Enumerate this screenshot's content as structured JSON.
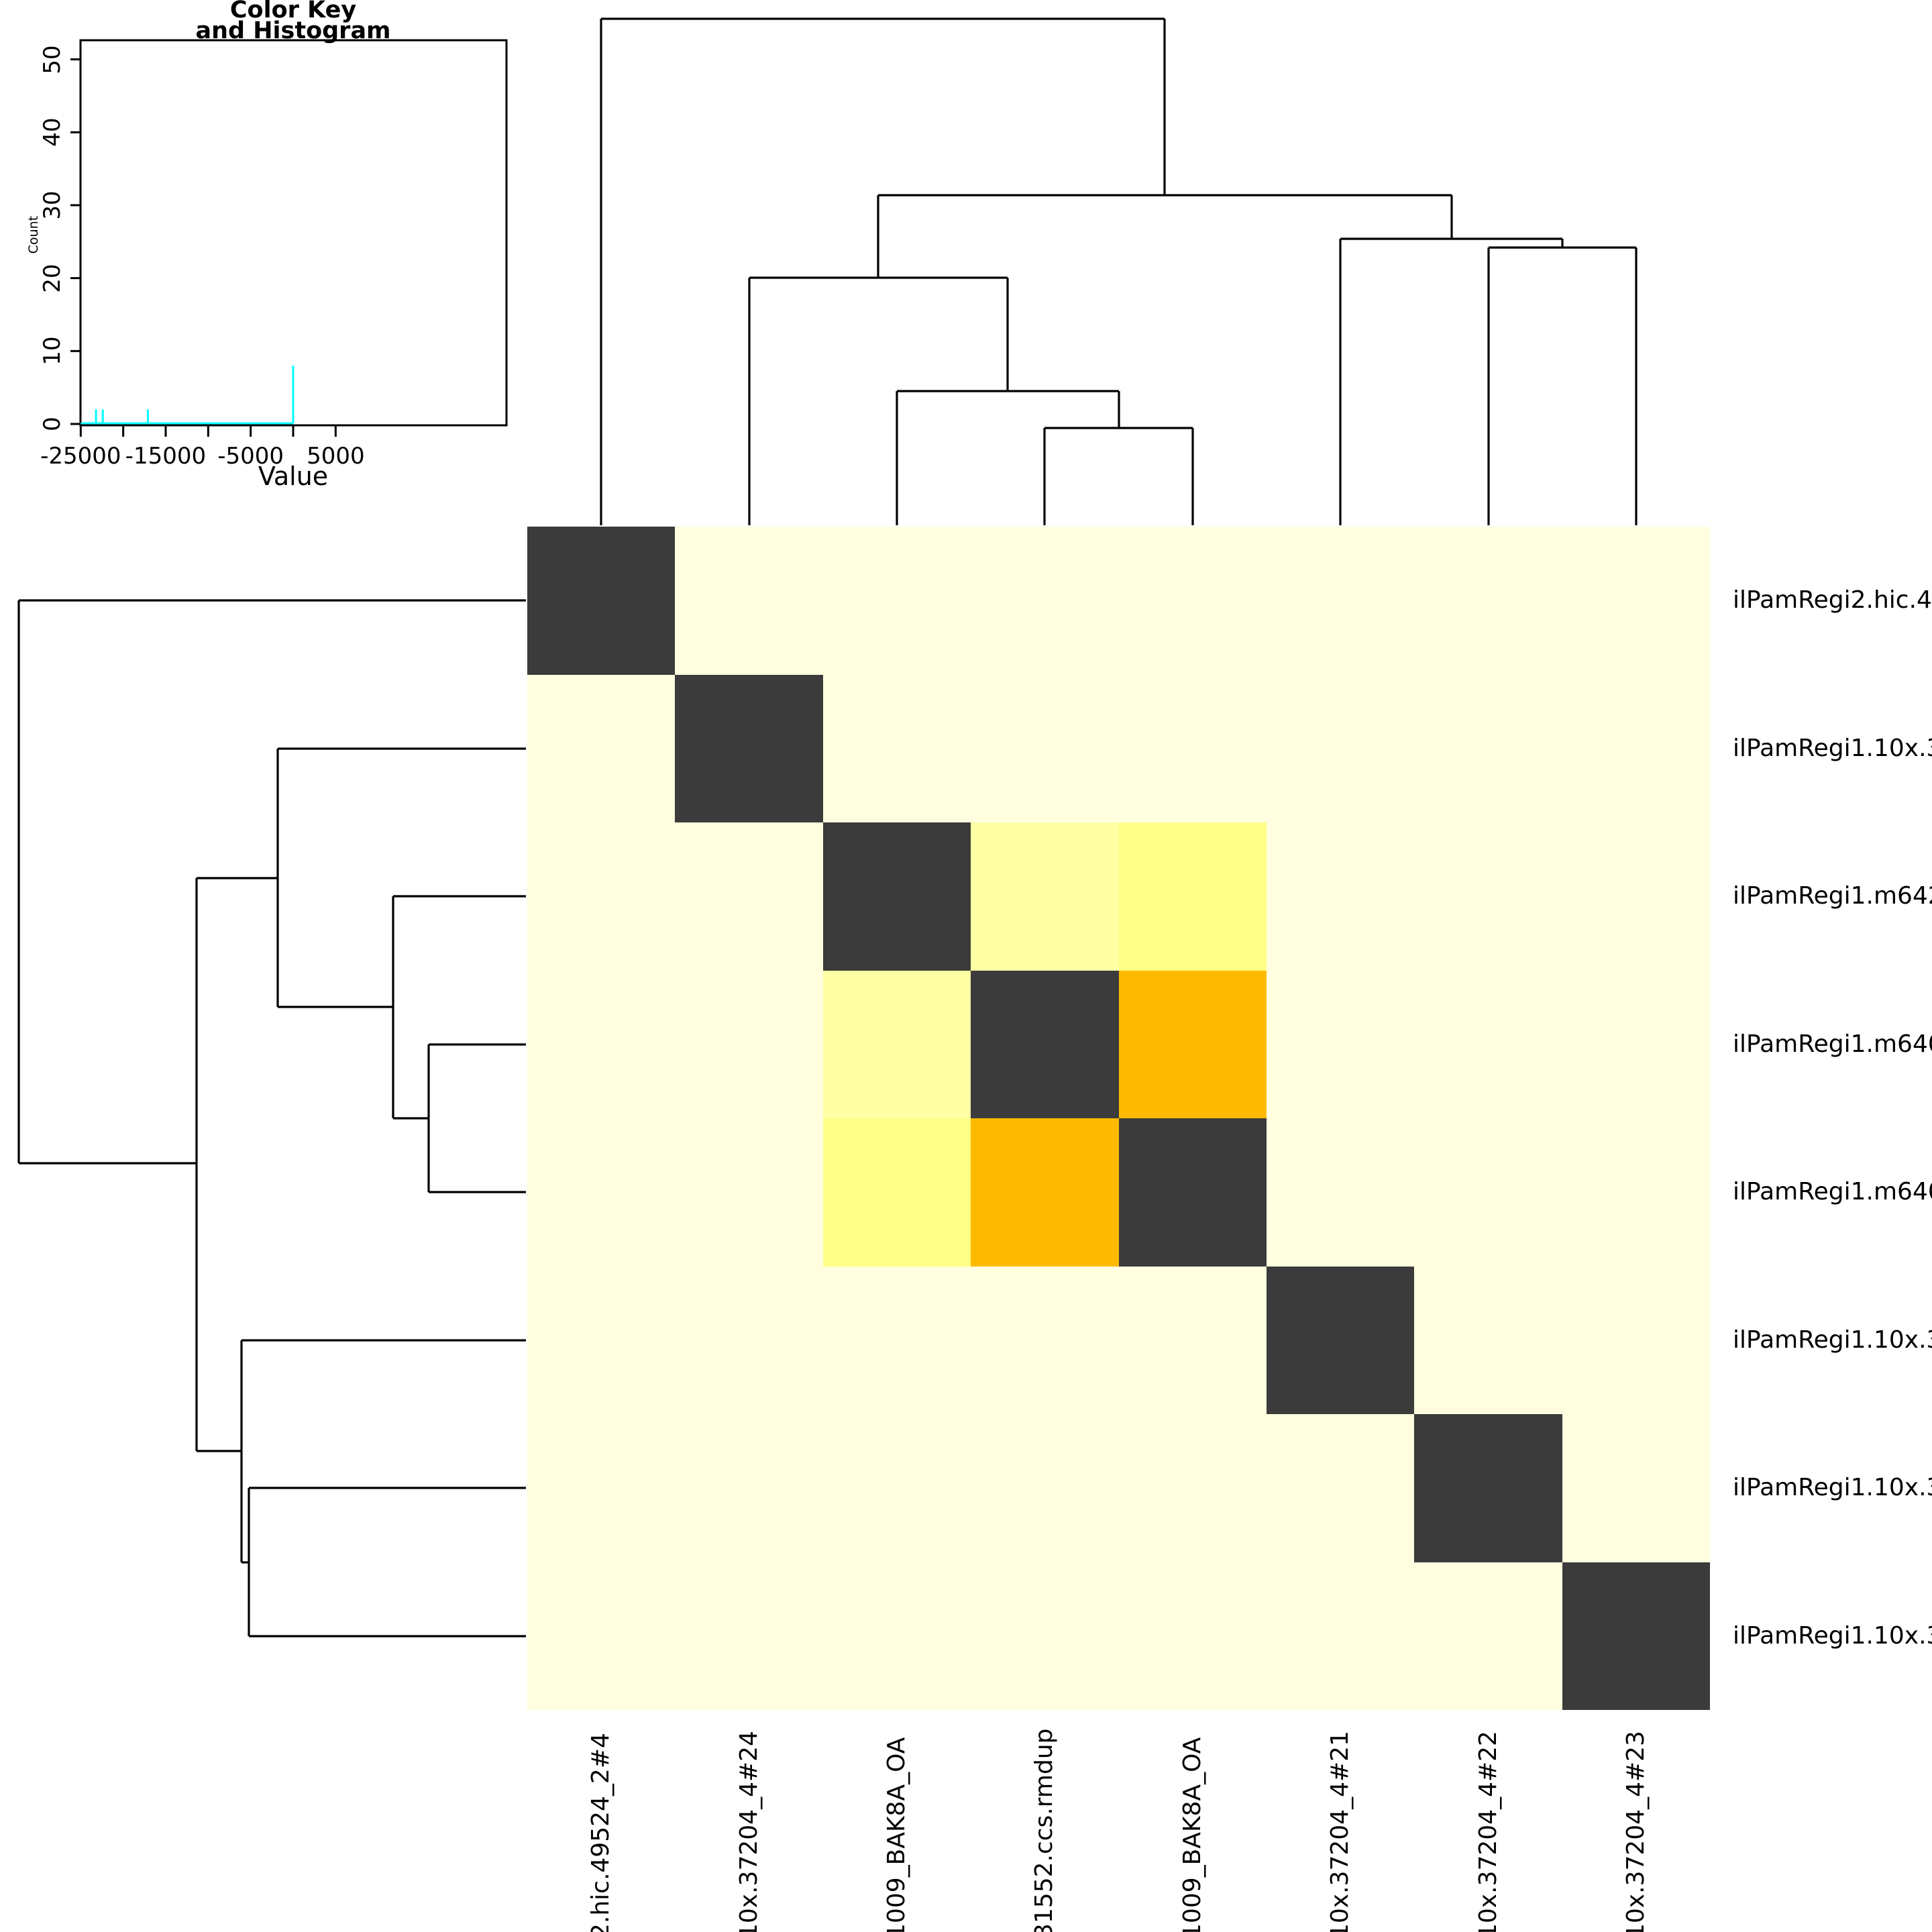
{
  "chart_data": {
    "type": "heatmap",
    "description_visible": "clustered symmetric heatmap with row and column dendrograms and color-key histogram",
    "row_labels": [
      "ilPamRegi2.hic.4",
      "ilPamRegi1.10x.3",
      "ilPamRegi1.m642",
      "ilPamRegi1.m640",
      "ilPamRegi1.m640",
      "ilPamRegi1.10x.3",
      "ilPamRegi1.10x.3",
      "ilPamRegi1.10x.3"
    ],
    "col_labels": [
      "2.hic.49524_2#4",
      "10x.37204_4#24",
      "1009_BAK8A_OA",
      "31552.ccs.rmdup",
      "1009_BAK8A_OA",
      "10x.37204_4#21",
      "10x.37204_4#22",
      "10x.37204_4#23"
    ],
    "cell_classes": [
      [
        "dark",
        "bg",
        "bg",
        "bg",
        "bg",
        "bg",
        "bg",
        "bg"
      ],
      [
        "bg",
        "dark",
        "bg",
        "bg",
        "bg",
        "bg",
        "bg",
        "bg"
      ],
      [
        "bg",
        "bg",
        "dark",
        "pale",
        "yellow",
        "bg",
        "bg",
        "bg"
      ],
      [
        "bg",
        "bg",
        "pale",
        "dark",
        "orange",
        "bg",
        "bg",
        "bg"
      ],
      [
        "bg",
        "bg",
        "yellow",
        "orange",
        "dark",
        "bg",
        "bg",
        "bg"
      ],
      [
        "bg",
        "bg",
        "bg",
        "bg",
        "bg",
        "dark",
        "bg",
        "bg"
      ],
      [
        "bg",
        "bg",
        "bg",
        "bg",
        "bg",
        "bg",
        "dark",
        "bg"
      ],
      [
        "bg",
        "bg",
        "bg",
        "bg",
        "bg",
        "bg",
        "bg",
        "dark"
      ]
    ],
    "class_colors": {
      "bg": "#ffffe0",
      "dark": "#3b3b3b",
      "pale": "#ffffa6",
      "yellow": "#ffff87",
      "orange": "#ffba00"
    },
    "col_dendrogram": {
      "topology_newick": "(c1,((c2,(c3,(c4,c5))),(c6,(c7,c8))))",
      "segments": [
        [
          896,
          28,
          1736,
          28
        ],
        [
          896,
          28,
          896,
          783
        ],
        [
          1736,
          28,
          1736,
          291
        ],
        [
          1309,
          291,
          2164,
          291
        ],
        [
          1309,
          291,
          1309,
          414
        ],
        [
          1117,
          414,
          1502,
          414
        ],
        [
          1117,
          414,
          1117,
          783
        ],
        [
          1502,
          414,
          1502,
          583
        ],
        [
          1337,
          583,
          1668,
          583
        ],
        [
          1337,
          583,
          1337,
          783
        ],
        [
          1668,
          583,
          1668,
          638
        ],
        [
          1557,
          638,
          1778,
          638
        ],
        [
          1557,
          638,
          1557,
          783
        ],
        [
          1778,
          638,
          1778,
          783
        ],
        [
          2164,
          291,
          2164,
          356
        ],
        [
          1998,
          356,
          2329,
          356
        ],
        [
          1998,
          356,
          1998,
          783
        ],
        [
          2329,
          356,
          2329,
          369
        ],
        [
          2219,
          369,
          2439,
          369
        ],
        [
          2219,
          369,
          2219,
          783
        ],
        [
          2439,
          369,
          2439,
          783
        ]
      ]
    },
    "row_dendrogram": {
      "topology_newick": "(r1,((r2,(r3,(r4,r5))),(r6,(r7,r8))))",
      "segments": [
        [
          28,
          895,
          28,
          1734
        ],
        [
          28,
          895,
          784,
          895
        ],
        [
          28,
          1734,
          293,
          1734
        ],
        [
          293,
          1309,
          293,
          2163
        ],
        [
          293,
          1309,
          414,
          1309
        ],
        [
          414,
          1116,
          414,
          1501
        ],
        [
          414,
          1116,
          784,
          1116
        ],
        [
          414,
          1501,
          586,
          1501
        ],
        [
          586,
          1336,
          586,
          1667
        ],
        [
          586,
          1336,
          784,
          1336
        ],
        [
          586,
          1667,
          639,
          1667
        ],
        [
          639,
          1557,
          639,
          1777
        ],
        [
          639,
          1557,
          784,
          1557
        ],
        [
          639,
          1777,
          784,
          1777
        ],
        [
          293,
          2163,
          360,
          2163
        ],
        [
          360,
          1998,
          360,
          2329
        ],
        [
          360,
          1998,
          784,
          1998
        ],
        [
          360,
          2329,
          371,
          2329
        ],
        [
          371,
          2218,
          371,
          2439
        ],
        [
          371,
          2218,
          784,
          2218
        ],
        [
          371,
          2439,
          784,
          2439
        ]
      ]
    },
    "color_key": {
      "title": [
        "Color Key",
        "and Histogram"
      ],
      "xlabel": "Value",
      "ylabel": "Count",
      "x_axis": {
        "ticks": [
          -25000,
          -20000,
          -15000,
          -10000,
          -5000,
          0,
          5000
        ],
        "labeled_ticks": [
          -25000,
          -15000,
          -5000,
          5000
        ],
        "range": [
          -25000,
          25000
        ]
      },
      "y_axis": {
        "ticks": [
          0,
          10,
          20,
          30,
          40,
          50
        ],
        "range": [
          0,
          52
        ]
      },
      "histogram": {
        "color": "#00ffff",
        "baseline_from": -25000,
        "baseline_to": 0,
        "spikes": [
          {
            "value": -23200,
            "count": 2
          },
          {
            "value": -22400,
            "count": 2
          },
          {
            "value": -17100,
            "count": 2
          },
          {
            "value": 0,
            "count": 8
          }
        ]
      }
    }
  }
}
